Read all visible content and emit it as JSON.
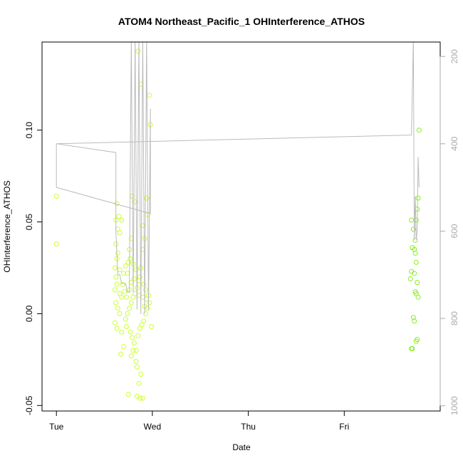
{
  "chart_data": {
    "type": "scatter",
    "title": "ATOM4 Northeast_Pacific_1 OHInterference_ATHOS",
    "xlabel": "Date",
    "ylabel": "OHInterference_ATHOS",
    "x_ticks": [
      "Tue",
      "Wed",
      "Thu",
      "Fri"
    ],
    "x_range_days": [
      -0.15,
      4.0
    ],
    "ylim": [
      -0.053,
      0.148
    ],
    "y_ticks": [
      -0.05,
      0.0,
      0.05,
      0.1
    ],
    "y_tick_labels": [
      "-0.05",
      "0.00",
      "0.05",
      "0.10"
    ],
    "y2_ticks": [
      200,
      400,
      600,
      800,
      1000
    ],
    "y2_range": [
      1012,
      167
    ],
    "grid": false,
    "series": [
      {
        "kind": "points",
        "color": "#ccff33",
        "points": [
          [
            0.0,
            0.064
          ],
          [
            0.0,
            0.038
          ],
          [
            0.63,
            0.06
          ],
          [
            0.65,
            0.053
          ],
          [
            0.62,
            0.051
          ],
          [
            0.68,
            0.051
          ],
          [
            0.64,
            0.046
          ],
          [
            0.66,
            0.044
          ],
          [
            0.62,
            0.038
          ],
          [
            0.64,
            0.033
          ],
          [
            0.63,
            0.03
          ],
          [
            0.61,
            0.025
          ],
          [
            0.66,
            0.024
          ],
          [
            0.62,
            0.02
          ],
          [
            0.63,
            0.016
          ],
          [
            0.61,
            0.013
          ],
          [
            0.66,
            0.011
          ],
          [
            0.68,
            0.009
          ],
          [
            0.62,
            0.006
          ],
          [
            0.64,
            0.003
          ],
          [
            0.66,
            0.0
          ],
          [
            0.61,
            -0.005
          ],
          [
            0.63,
            -0.008
          ],
          [
            0.68,
            -0.01
          ],
          [
            0.7,
            -0.018
          ],
          [
            0.67,
            -0.022
          ],
          [
            0.75,
            -0.044
          ],
          [
            0.78,
            -0.023
          ],
          [
            0.8,
            -0.02
          ],
          [
            0.83,
            -0.026
          ],
          [
            0.84,
            -0.029
          ],
          [
            0.86,
            -0.038
          ],
          [
            0.84,
            -0.045
          ],
          [
            0.87,
            -0.046
          ],
          [
            0.9,
            -0.046
          ],
          [
            0.88,
            -0.033
          ],
          [
            0.74,
            0.022
          ],
          [
            0.76,
            0.035
          ],
          [
            0.78,
            0.041
          ],
          [
            0.79,
            0.064
          ],
          [
            0.82,
            0.061
          ],
          [
            0.85,
            0.143
          ],
          [
            0.88,
            0.125
          ],
          [
            0.9,
            0.048
          ],
          [
            0.92,
            0.041
          ],
          [
            0.94,
            0.063
          ],
          [
            0.95,
            0.054
          ],
          [
            0.97,
            0.119
          ],
          [
            0.98,
            0.103
          ],
          [
            0.9,
            0.035
          ],
          [
            0.88,
            0.025
          ],
          [
            0.86,
            0.018
          ],
          [
            0.84,
            0.014
          ],
          [
            0.82,
            0.011
          ],
          [
            0.8,
            0.009
          ],
          [
            0.78,
            0.006
          ],
          [
            0.76,
            0.003
          ],
          [
            0.74,
            0.0
          ],
          [
            0.72,
            -0.003
          ],
          [
            0.73,
            -0.007
          ],
          [
            0.77,
            -0.01
          ],
          [
            0.79,
            -0.013
          ],
          [
            0.81,
            -0.016
          ],
          [
            0.83,
            -0.02
          ],
          [
            0.85,
            -0.012
          ],
          [
            0.87,
            -0.008
          ],
          [
            0.89,
            -0.006
          ],
          [
            0.91,
            -0.004
          ],
          [
            0.93,
            0.0
          ],
          [
            0.95,
            0.003
          ],
          [
            0.97,
            0.006
          ],
          [
            0.99,
            -0.007
          ],
          [
            0.9,
            0.009
          ],
          [
            0.86,
            0.01
          ],
          [
            0.83,
            0.024
          ],
          [
            0.8,
            0.027
          ],
          [
            0.77,
            0.03
          ],
          [
            0.75,
            0.028
          ],
          [
            0.72,
            0.026
          ],
          [
            0.7,
            0.022
          ],
          [
            0.69,
            0.016
          ],
          [
            0.71,
            0.012
          ],
          [
            0.73,
            0.009
          ],
          [
            0.76,
            0.013
          ],
          [
            0.78,
            0.017
          ],
          [
            0.81,
            0.019
          ],
          [
            0.87,
            0.02
          ],
          [
            0.91,
            0.016
          ],
          [
            0.93,
            0.013
          ],
          [
            0.94,
            0.008
          ],
          [
            0.92,
            0.004
          ],
          [
            0.96,
            0.01
          ]
        ]
      },
      {
        "kind": "points",
        "color": "#88ee22",
        "points": [
          [
            3.7,
            0.051
          ],
          [
            3.72,
            0.046
          ],
          [
            3.71,
            0.036
          ],
          [
            3.73,
            0.035
          ],
          [
            3.7,
            0.023
          ],
          [
            3.69,
            0.019
          ],
          [
            3.75,
            0.051
          ],
          [
            3.76,
            0.057
          ],
          [
            3.77,
            0.063
          ],
          [
            3.78,
            0.1
          ],
          [
            3.74,
            0.033
          ],
          [
            3.75,
            0.028
          ],
          [
            3.76,
            0.017
          ],
          [
            3.74,
            0.012
          ],
          [
            3.75,
            0.011
          ],
          [
            3.77,
            0.009
          ],
          [
            3.72,
            -0.002
          ],
          [
            3.73,
            -0.004
          ],
          [
            3.71,
            -0.019
          ],
          [
            3.7,
            -0.019
          ],
          [
            3.76,
            -0.014
          ],
          [
            3.75,
            -0.015
          ],
          [
            3.74,
            0.04
          ],
          [
            3.73,
            0.022
          ]
        ]
      },
      {
        "kind": "line",
        "color": "#bbbbbb",
        "axis": "secondary",
        "points": [
          [
            0.0,
            400
          ],
          [
            0.0,
            440
          ],
          [
            0.0,
            500
          ],
          [
            0.98,
            560
          ],
          [
            0.98,
            320
          ],
          [
            0.96,
            780
          ],
          [
            0.94,
            160
          ],
          [
            0.92,
            790
          ],
          [
            0.9,
            160
          ],
          [
            0.88,
            790
          ],
          [
            0.86,
            160
          ],
          [
            0.84,
            780
          ],
          [
            0.82,
            160
          ],
          [
            0.8,
            740
          ],
          [
            0.78,
            160
          ],
          [
            0.76,
            740
          ],
          [
            0.74,
            740
          ],
          [
            0.72,
            720
          ],
          [
            0.7,
            720
          ],
          [
            0.68,
            720
          ],
          [
            0.66,
            700
          ],
          [
            0.64,
            700
          ],
          [
            0.62,
            600
          ],
          [
            0.62,
            420
          ],
          [
            0.0,
            400
          ],
          [
            3.7,
            380
          ],
          [
            3.72,
            160
          ],
          [
            3.73,
            620
          ],
          [
            3.74,
            520
          ],
          [
            3.75,
            620
          ],
          [
            3.76,
            600
          ],
          [
            3.77,
            430
          ],
          [
            3.78,
            500
          ]
        ]
      }
    ]
  }
}
